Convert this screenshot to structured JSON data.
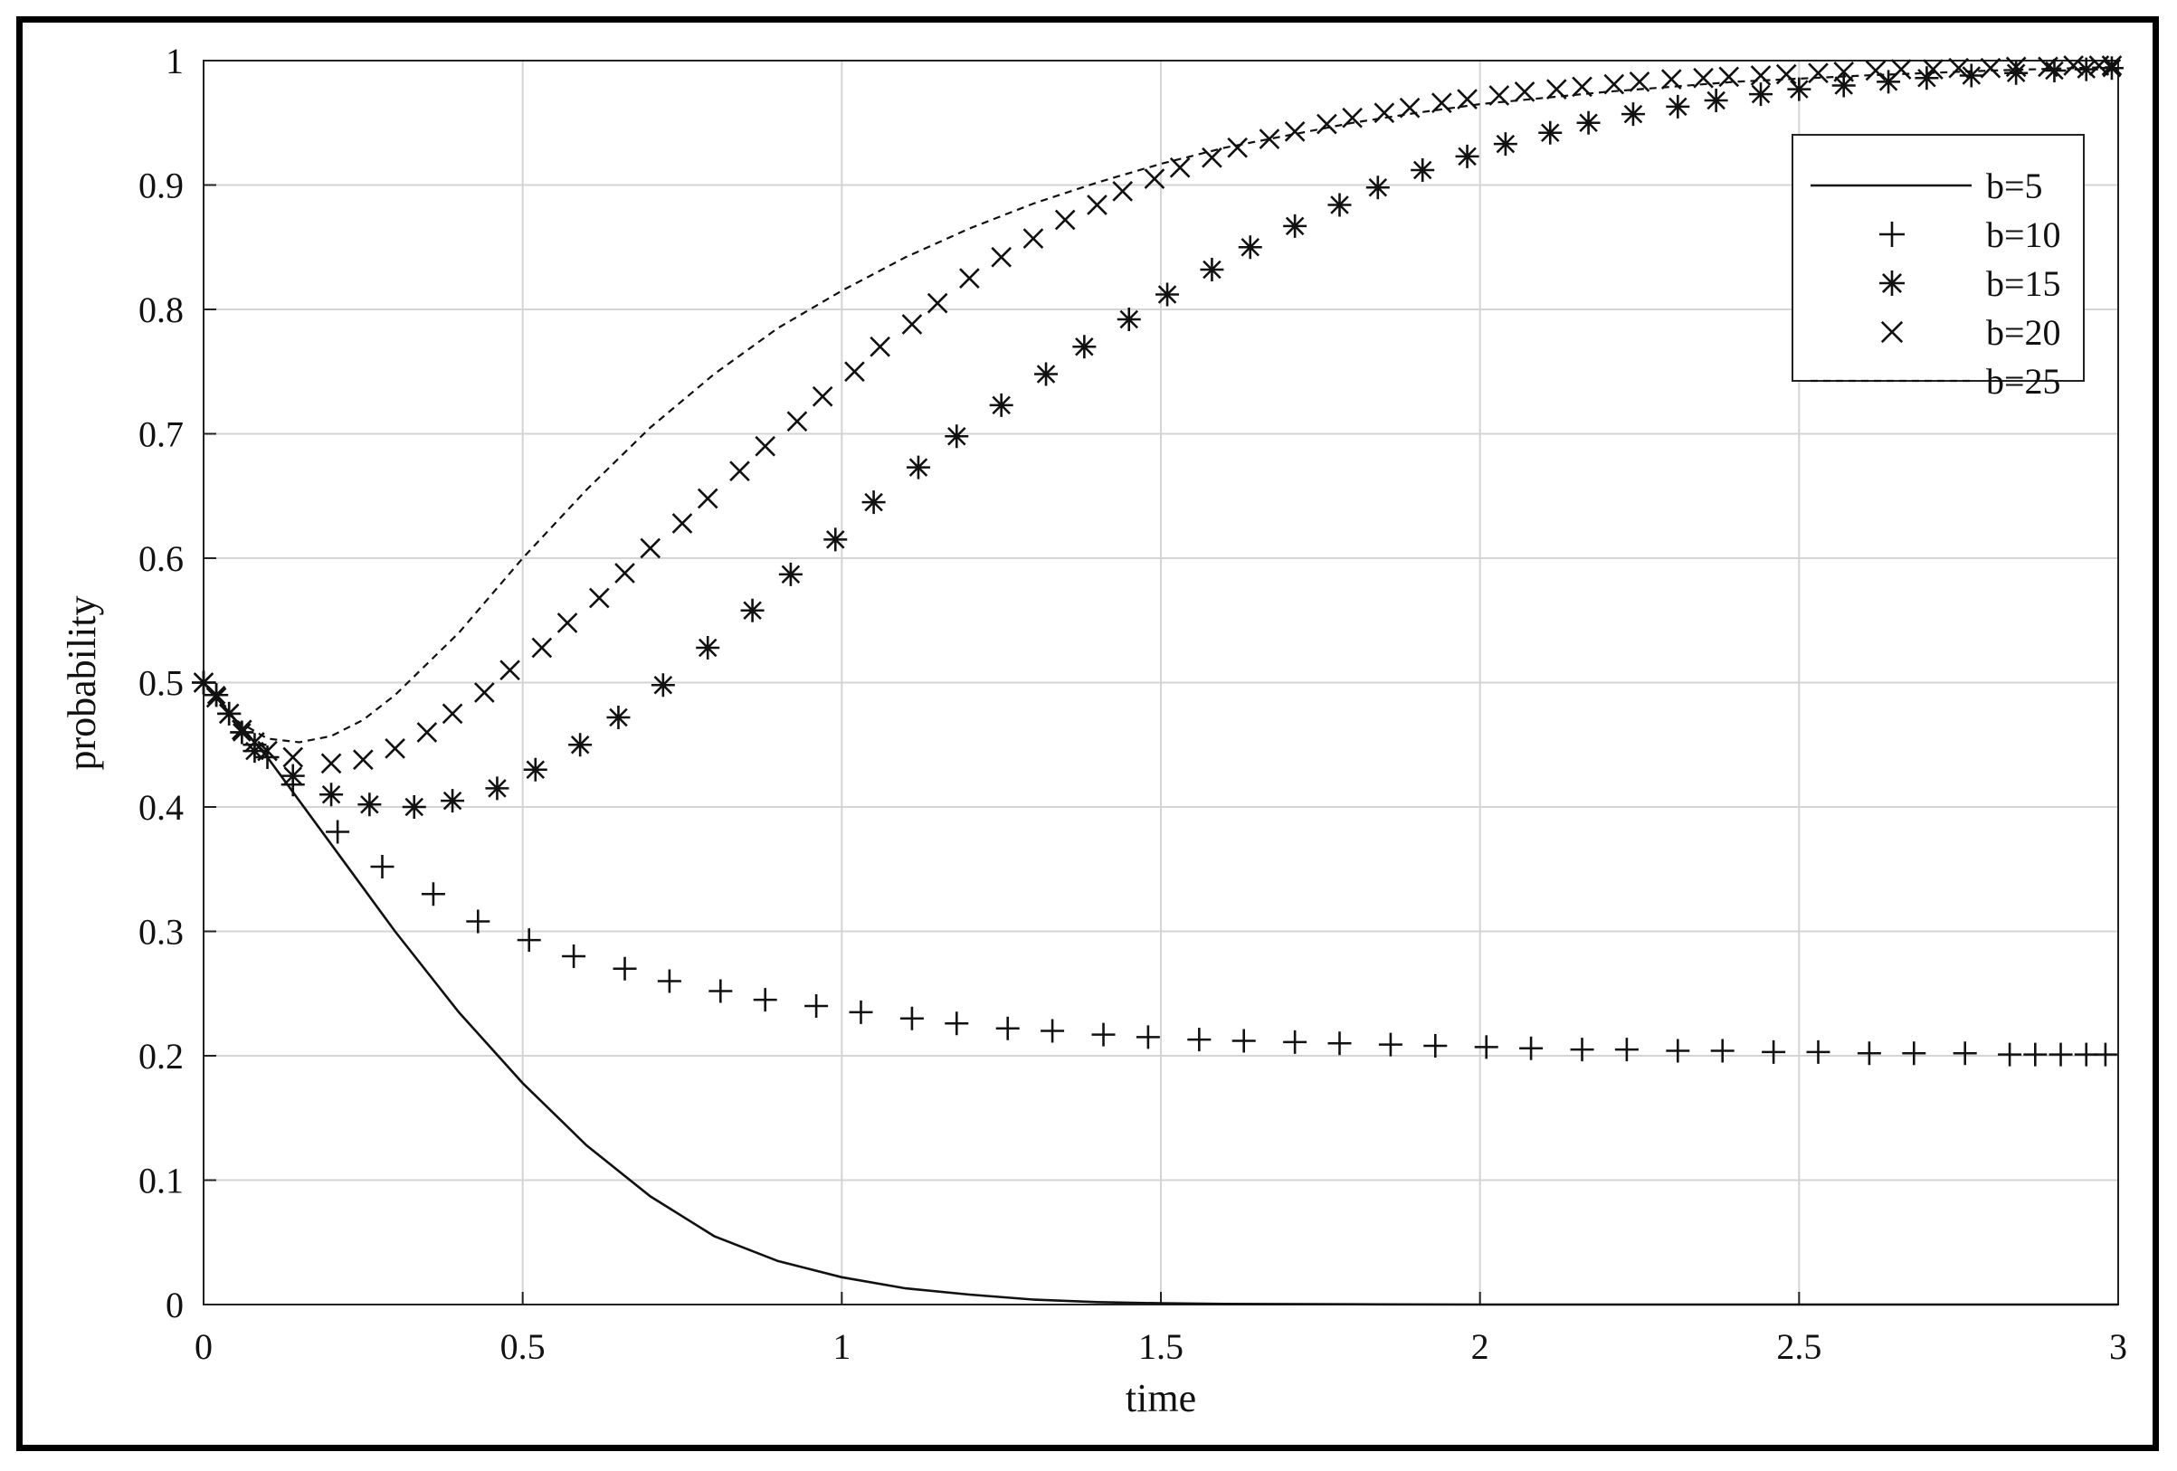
{
  "chart_data": {
    "type": "line",
    "xlabel": "time",
    "ylabel": "probability",
    "xlim": [
      0,
      3
    ],
    "ylim": [
      0,
      1
    ],
    "xticks": [
      "0",
      "0.5",
      "1",
      "1.5",
      "2",
      "2.5",
      "3"
    ],
    "yticks": [
      "0",
      "0.1",
      "0.2",
      "0.3",
      "0.4",
      "0.5",
      "0.6",
      "0.7",
      "0.8",
      "0.9",
      "1"
    ],
    "grid": true,
    "legend_position": "top-right",
    "series": [
      {
        "name": "b=5",
        "style": "solid line",
        "x": [
          0,
          0.1,
          0.2,
          0.3,
          0.4,
          0.5,
          0.6,
          0.7,
          0.8,
          0.9,
          1.0,
          1.1,
          1.2,
          1.3,
          1.4,
          1.5,
          1.6,
          1.8,
          2.0,
          2.5,
          3.0
        ],
        "y": [
          0.5,
          0.44,
          0.37,
          0.3,
          0.235,
          0.178,
          0.128,
          0.087,
          0.055,
          0.035,
          0.022,
          0.013,
          0.008,
          0.004,
          0.002,
          0.001,
          0.0005,
          0.0002,
          0.0,
          0.0,
          0.0
        ]
      },
      {
        "name": "b=10",
        "style": "plus markers",
        "x": [
          0,
          0.02,
          0.04,
          0.06,
          0.08,
          0.1,
          0.14,
          0.21,
          0.28,
          0.36,
          0.43,
          0.51,
          0.58,
          0.66,
          0.73,
          0.81,
          0.88,
          0.96,
          1.03,
          1.11,
          1.18,
          1.26,
          1.33,
          1.41,
          1.48,
          1.56,
          1.63,
          1.71,
          1.78,
          1.86,
          1.93,
          2.01,
          2.08,
          2.16,
          2.23,
          2.31,
          2.38,
          2.46,
          2.53,
          2.61,
          2.68,
          2.76,
          2.83,
          2.87,
          2.91,
          2.95,
          2.98
        ],
        "y": [
          0.5,
          0.49,
          0.475,
          0.46,
          0.45,
          0.44,
          0.418,
          0.38,
          0.352,
          0.33,
          0.308,
          0.293,
          0.28,
          0.27,
          0.26,
          0.252,
          0.245,
          0.24,
          0.235,
          0.23,
          0.226,
          0.222,
          0.22,
          0.217,
          0.215,
          0.213,
          0.212,
          0.211,
          0.21,
          0.209,
          0.208,
          0.207,
          0.206,
          0.205,
          0.205,
          0.204,
          0.204,
          0.203,
          0.203,
          0.202,
          0.202,
          0.202,
          0.201,
          0.201,
          0.201,
          0.201,
          0.201
        ]
      },
      {
        "name": "b=15",
        "style": "asterisk markers",
        "x": [
          0,
          0.02,
          0.04,
          0.06,
          0.08,
          0.14,
          0.2,
          0.26,
          0.33,
          0.39,
          0.46,
          0.52,
          0.59,
          0.65,
          0.72,
          0.79,
          0.86,
          0.92,
          0.99,
          1.05,
          1.12,
          1.18,
          1.25,
          1.32,
          1.38,
          1.45,
          1.51,
          1.58,
          1.64,
          1.71,
          1.78,
          1.84,
          1.91,
          1.98,
          2.04,
          2.11,
          2.17,
          2.24,
          2.31,
          2.37,
          2.44,
          2.5,
          2.57,
          2.64,
          2.7,
          2.77,
          2.84,
          2.9,
          2.95,
          2.99
        ],
        "y": [
          0.5,
          0.49,
          0.475,
          0.46,
          0.445,
          0.425,
          0.41,
          0.402,
          0.4,
          0.405,
          0.415,
          0.43,
          0.45,
          0.472,
          0.498,
          0.528,
          0.558,
          0.587,
          0.615,
          0.645,
          0.673,
          0.698,
          0.723,
          0.748,
          0.77,
          0.792,
          0.812,
          0.832,
          0.85,
          0.867,
          0.884,
          0.898,
          0.912,
          0.923,
          0.933,
          0.942,
          0.95,
          0.957,
          0.963,
          0.968,
          0.973,
          0.977,
          0.98,
          0.983,
          0.986,
          0.988,
          0.99,
          0.992,
          0.993,
          0.994
        ]
      },
      {
        "name": "b=20",
        "style": "cross markers",
        "x": [
          0,
          0.02,
          0.04,
          0.06,
          0.08,
          0.1,
          0.14,
          0.2,
          0.25,
          0.3,
          0.35,
          0.39,
          0.44,
          0.48,
          0.53,
          0.57,
          0.62,
          0.66,
          0.7,
          0.75,
          0.79,
          0.84,
          0.88,
          0.93,
          0.97,
          1.02,
          1.06,
          1.11,
          1.15,
          1.2,
          1.25,
          1.3,
          1.35,
          1.4,
          1.44,
          1.49,
          1.53,
          1.58,
          1.62,
          1.67,
          1.71,
          1.76,
          1.8,
          1.85,
          1.89,
          1.94,
          1.98,
          2.03,
          2.07,
          2.12,
          2.16,
          2.21,
          2.25,
          2.3,
          2.35,
          2.39,
          2.44,
          2.48,
          2.53,
          2.57,
          2.62,
          2.66,
          2.71,
          2.75,
          2.8,
          2.84,
          2.89,
          2.93,
          2.97,
          2.99
        ],
        "y": [
          0.5,
          0.488,
          0.475,
          0.462,
          0.452,
          0.445,
          0.44,
          0.435,
          0.438,
          0.447,
          0.46,
          0.475,
          0.492,
          0.51,
          0.528,
          0.548,
          0.568,
          0.588,
          0.608,
          0.628,
          0.648,
          0.67,
          0.69,
          0.71,
          0.73,
          0.75,
          0.77,
          0.788,
          0.805,
          0.825,
          0.842,
          0.857,
          0.872,
          0.884,
          0.895,
          0.905,
          0.914,
          0.922,
          0.93,
          0.937,
          0.943,
          0.949,
          0.954,
          0.958,
          0.962,
          0.966,
          0.969,
          0.972,
          0.975,
          0.977,
          0.979,
          0.981,
          0.983,
          0.985,
          0.986,
          0.987,
          0.988,
          0.989,
          0.99,
          0.991,
          0.992,
          0.993,
          0.993,
          0.994,
          0.994,
          0.995,
          0.995,
          0.996,
          0.996,
          0.996
        ]
      },
      {
        "name": "b=25",
        "style": "dashed line",
        "x": [
          0,
          0.05,
          0.1,
          0.15,
          0.2,
          0.25,
          0.3,
          0.4,
          0.5,
          0.6,
          0.7,
          0.8,
          0.9,
          1.0,
          1.1,
          1.2,
          1.3,
          1.4,
          1.5,
          1.6,
          1.7,
          1.8,
          1.9,
          2.0,
          2.2,
          2.4,
          2.6,
          2.8,
          3.0
        ],
        "y": [
          0.5,
          0.47,
          0.455,
          0.452,
          0.457,
          0.47,
          0.49,
          0.54,
          0.6,
          0.655,
          0.705,
          0.748,
          0.785,
          0.815,
          0.842,
          0.865,
          0.885,
          0.902,
          0.917,
          0.93,
          0.94,
          0.95,
          0.958,
          0.965,
          0.975,
          0.983,
          0.988,
          0.992,
          0.995
        ]
      }
    ]
  }
}
